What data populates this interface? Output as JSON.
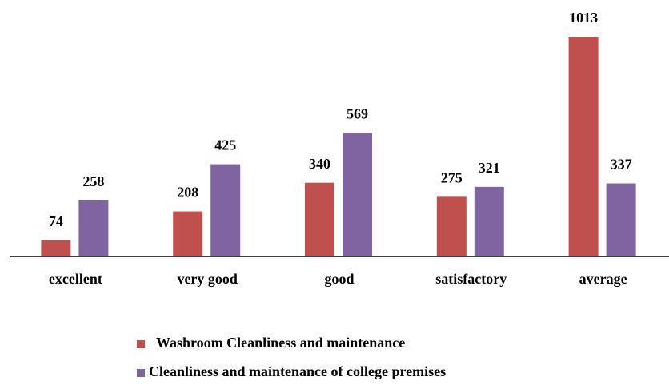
{
  "chart_data": {
    "type": "bar",
    "categories": [
      "excellent",
      "very good",
      "good",
      "satisfactory",
      "average"
    ],
    "series": [
      {
        "name": "Washroom Cleanliness and maintenance",
        "color": "#c0504d",
        "values": [
          74,
          208,
          340,
          275,
          1013
        ]
      },
      {
        "name": "Cleanliness and maintenance of college premises",
        "color": "#8064a2",
        "values": [
          258,
          425,
          569,
          321,
          337
        ]
      }
    ],
    "legend": "bottom"
  }
}
